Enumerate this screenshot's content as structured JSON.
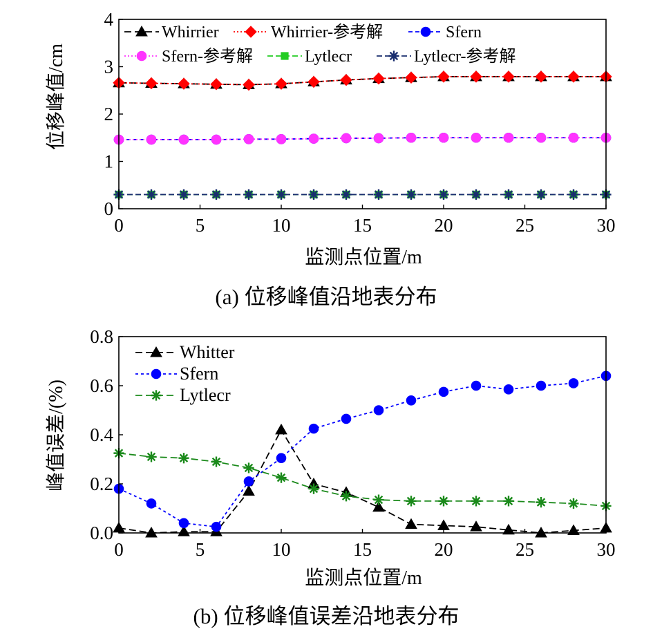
{
  "chart_data": [
    {
      "type": "line",
      "caption": "(a)  位移峰值沿地表分布",
      "xlabel": "监测点位置/m",
      "ylabel": "位移峰值/cm",
      "xlim": [
        0,
        30
      ],
      "ylim": [
        0,
        4
      ],
      "xticks": [
        "0",
        "5",
        "10",
        "15",
        "20",
        "25",
        "30"
      ],
      "yticks": [
        "0",
        "1",
        "2",
        "3",
        "4"
      ],
      "x": [
        0,
        2,
        4,
        6,
        8,
        10,
        12,
        14,
        16,
        18,
        20,
        22,
        24,
        26,
        28,
        30
      ],
      "series": [
        {
          "name": "Whirrier",
          "marker": "triangle",
          "color": "#000000",
          "dash": "10,5",
          "filled": true,
          "values": [
            2.66,
            2.65,
            2.64,
            2.63,
            2.62,
            2.64,
            2.68,
            2.72,
            2.75,
            2.77,
            2.79,
            2.79,
            2.79,
            2.79,
            2.79,
            2.79
          ]
        },
        {
          "name": "Whirrier-参考解",
          "marker": "diamond",
          "color": "#ff0000",
          "dash": "2,3",
          "filled": true,
          "values": [
            2.66,
            2.65,
            2.64,
            2.63,
            2.62,
            2.64,
            2.68,
            2.72,
            2.75,
            2.77,
            2.79,
            2.79,
            2.79,
            2.79,
            2.79,
            2.79
          ]
        },
        {
          "name": "Sfern",
          "marker": "circle",
          "color": "#0000ff",
          "dash": "6,4",
          "filled": true,
          "values": [
            1.46,
            1.46,
            1.46,
            1.46,
            1.47,
            1.47,
            1.48,
            1.49,
            1.49,
            1.5,
            1.5,
            1.5,
            1.5,
            1.5,
            1.5,
            1.5
          ]
        },
        {
          "name": "Sfern-参考解",
          "marker": "circle",
          "color": "#ff33ff",
          "dash": "2,3",
          "filled": true,
          "values": [
            1.46,
            1.46,
            1.46,
            1.46,
            1.47,
            1.47,
            1.48,
            1.49,
            1.49,
            1.5,
            1.5,
            1.5,
            1.5,
            1.5,
            1.5,
            1.5
          ]
        },
        {
          "name": "Lytlecr",
          "marker": "square",
          "color": "#22cc22",
          "dash": "8,4",
          "filled": true,
          "values": [
            0.3,
            0.3,
            0.3,
            0.3,
            0.3,
            0.3,
            0.3,
            0.3,
            0.3,
            0.3,
            0.3,
            0.3,
            0.3,
            0.3,
            0.3,
            0.3
          ]
        },
        {
          "name": "Lytlecr-参考解",
          "marker": "star",
          "color": "#1a2e6e",
          "dash": "8,4",
          "filled": false,
          "values": [
            0.3,
            0.3,
            0.3,
            0.3,
            0.3,
            0.3,
            0.3,
            0.3,
            0.3,
            0.3,
            0.3,
            0.3,
            0.3,
            0.3,
            0.3,
            0.3
          ]
        }
      ]
    },
    {
      "type": "line",
      "caption": "(b)  位移峰值误差沿地表分布",
      "xlabel": "监测点位置/m",
      "ylabel": "峰值误差/(%)",
      "xlim": [
        0,
        30
      ],
      "ylim": [
        0,
        0.8
      ],
      "xticks": [
        "0",
        "5",
        "10",
        "15",
        "20",
        "25",
        "30"
      ],
      "yticks": [
        "0.0",
        "0.2",
        "0.4",
        "0.6",
        "0.8"
      ],
      "x": [
        0,
        2,
        4,
        6,
        8,
        10,
        12,
        14,
        16,
        18,
        20,
        22,
        24,
        26,
        28,
        30
      ],
      "series": [
        {
          "name": "Whitter",
          "marker": "triangle",
          "color": "#000000",
          "dash": "10,5",
          "filled": true,
          "values": [
            0.02,
            0.0,
            0.005,
            0.005,
            0.17,
            0.42,
            0.2,
            0.165,
            0.105,
            0.035,
            0.03,
            0.025,
            0.012,
            0.0,
            0.01,
            0.02
          ]
        },
        {
          "name": "Sfern",
          "marker": "circle",
          "color": "#0000ff",
          "dash": "4,4",
          "filled": true,
          "values": [
            0.18,
            0.12,
            0.04,
            0.025,
            0.21,
            0.305,
            0.425,
            0.465,
            0.5,
            0.54,
            0.575,
            0.6,
            0.585,
            0.6,
            0.61,
            0.64
          ]
        },
        {
          "name": "Lytlecr",
          "marker": "star",
          "color": "#1b8a1b",
          "dash": "10,5",
          "filled": false,
          "values": [
            0.325,
            0.31,
            0.305,
            0.29,
            0.265,
            0.225,
            0.18,
            0.15,
            0.135,
            0.13,
            0.13,
            0.13,
            0.13,
            0.125,
            0.12,
            0.11
          ]
        }
      ]
    }
  ]
}
